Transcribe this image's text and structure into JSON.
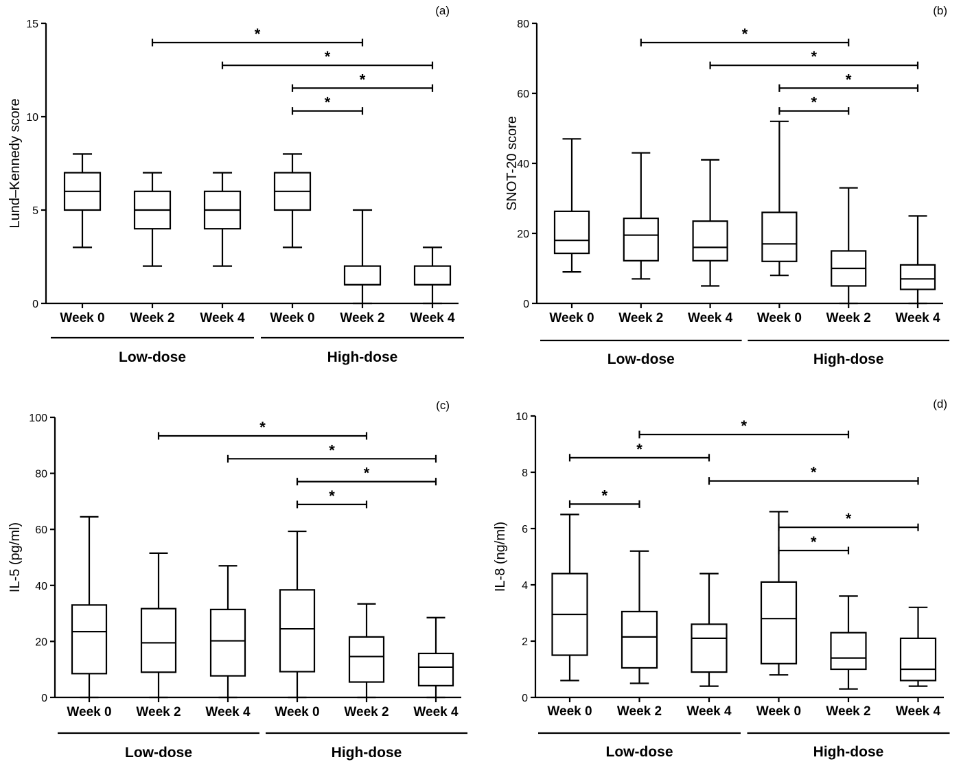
{
  "chart_data": [
    {
      "type": "box",
      "panel_label": "(a)",
      "ylabel": "Lund–Kennedy score",
      "ylim": [
        0,
        15
      ],
      "yticks": [
        0,
        5,
        10,
        15
      ],
      "categories": [
        "Week 0",
        "Week 2",
        "Week 4",
        "Week 0",
        "Week 2",
        "Week 4"
      ],
      "groups": [
        {
          "label": "Low-dose",
          "from": 0,
          "to": 2
        },
        {
          "label": "High-dose",
          "from": 3,
          "to": 5
        }
      ],
      "boxes": [
        {
          "min": 3,
          "q1": 5,
          "median": 6,
          "q3": 7,
          "max": 8
        },
        {
          "min": 2,
          "q1": 4,
          "median": 5,
          "q3": 6,
          "max": 7
        },
        {
          "min": 2,
          "q1": 4,
          "median": 5,
          "q3": 6,
          "max": 7
        },
        {
          "min": 3,
          "q1": 5,
          "median": 6,
          "q3": 7,
          "max": 8
        },
        {
          "min": 0,
          "q1": 1,
          "median": 1,
          "q3": 2,
          "max": 5
        },
        {
          "min": 0,
          "q1": 1,
          "median": 1,
          "q3": 2,
          "max": 3
        }
      ],
      "significance": [
        {
          "from": 1,
          "to": 4,
          "label": "*"
        },
        {
          "from": 2,
          "to": 5,
          "label": "*"
        },
        {
          "from": 3,
          "to": 5,
          "label": "*"
        },
        {
          "from": 3,
          "to": 4,
          "label": "*"
        }
      ]
    },
    {
      "type": "box",
      "panel_label": "(b)",
      "ylabel": "SNOT-20 score",
      "ylim": [
        0,
        80
      ],
      "yticks": [
        0,
        20,
        40,
        60,
        80
      ],
      "categories": [
        "Week 0",
        "Week 2",
        "Week 4",
        "Week 0",
        "Week 2",
        "Week 4"
      ],
      "groups": [
        {
          "label": "Low-dose",
          "from": 0,
          "to": 2
        },
        {
          "label": "High-dose",
          "from": 3,
          "to": 5
        }
      ],
      "boxes": [
        {
          "min": 9,
          "q1": 14.3,
          "median": 18,
          "q3": 26.3,
          "max": 47
        },
        {
          "min": 7,
          "q1": 12.2,
          "median": 19.5,
          "q3": 24.3,
          "max": 43
        },
        {
          "min": 5,
          "q1": 12.2,
          "median": 16,
          "q3": 23.5,
          "max": 41
        },
        {
          "min": 8,
          "q1": 12,
          "median": 17,
          "q3": 26,
          "max": 52
        },
        {
          "min": 0,
          "q1": 5,
          "median": 10,
          "q3": 15,
          "max": 33
        },
        {
          "min": 0,
          "q1": 4,
          "median": 7,
          "q3": 11,
          "max": 25
        }
      ],
      "significance": [
        {
          "from": 1,
          "to": 4,
          "label": "*"
        },
        {
          "from": 2,
          "to": 5,
          "label": "*"
        },
        {
          "from": 3,
          "to": 5,
          "label": "*"
        },
        {
          "from": 3,
          "to": 4,
          "label": "*"
        }
      ]
    },
    {
      "type": "box",
      "panel_label": "(c)",
      "ylabel": "IL-5 (pg/ml)",
      "ylim": [
        0,
        100
      ],
      "yticks": [
        0,
        20,
        40,
        60,
        80,
        100
      ],
      "categories": [
        "Week 0",
        "Week 2",
        "Week 4",
        "Week 0",
        "Week 2",
        "Week 4"
      ],
      "groups": [
        {
          "label": "Low-dose",
          "from": 0,
          "to": 2
        },
        {
          "label": "High-dose",
          "from": 3,
          "to": 5
        }
      ],
      "boxes": [
        {
          "min": 0,
          "q1": 8.5,
          "median": 23.5,
          "q3": 33,
          "max": 64.5
        },
        {
          "min": 0,
          "q1": 9,
          "median": 19.5,
          "q3": 31.7,
          "max": 51.5
        },
        {
          "min": 0,
          "q1": 7.7,
          "median": 20.2,
          "q3": 31.4,
          "max": 47
        },
        {
          "min": 0,
          "q1": 9.2,
          "median": 24.5,
          "q3": 38.4,
          "max": 59.3
        },
        {
          "min": 0,
          "q1": 5.5,
          "median": 14.6,
          "q3": 21.6,
          "max": 33.4
        },
        {
          "min": 0,
          "q1": 4.2,
          "median": 10.8,
          "q3": 15.7,
          "max": 28.5
        }
      ],
      "significance": [
        {
          "from": 1,
          "to": 4,
          "label": "*"
        },
        {
          "from": 2,
          "to": 5,
          "label": "*"
        },
        {
          "from": 3,
          "to": 5,
          "label": "*"
        },
        {
          "from": 3,
          "to": 4,
          "label": "*"
        }
      ]
    },
    {
      "type": "box",
      "panel_label": "(d)",
      "ylabel": "IL-8 (ng/ml)",
      "ylim": [
        0,
        10
      ],
      "yticks": [
        0,
        2,
        4,
        6,
        8,
        10
      ],
      "categories": [
        "Week 0",
        "Week 2",
        "Week 4",
        "Week 0",
        "Week 2",
        "Week 4"
      ],
      "groups": [
        {
          "label": "Low-dose",
          "from": 0,
          "to": 2
        },
        {
          "label": "High-dose",
          "from": 3,
          "to": 5
        }
      ],
      "boxes": [
        {
          "min": 0.6,
          "q1": 1.5,
          "median": 2.95,
          "q3": 4.4,
          "max": 6.5
        },
        {
          "min": 0.5,
          "q1": 1.05,
          "median": 2.15,
          "q3": 3.05,
          "max": 5.2
        },
        {
          "min": 0.4,
          "q1": 0.9,
          "median": 2.1,
          "q3": 2.6,
          "max": 4.4
        },
        {
          "min": 0.8,
          "q1": 1.2,
          "median": 2.8,
          "q3": 4.1,
          "max": 6.6
        },
        {
          "min": 0.3,
          "q1": 1.0,
          "median": 1.4,
          "q3": 2.3,
          "max": 3.6
        },
        {
          "min": 0.4,
          "q1": 0.6,
          "median": 1.0,
          "q3": 2.1,
          "max": 3.2
        }
      ],
      "significance": [
        {
          "from": 1,
          "to": 4,
          "label": "*"
        },
        {
          "from": 0,
          "to": 2,
          "label": "*"
        },
        {
          "from": 2,
          "to": 5,
          "label": "*"
        },
        {
          "from": 0,
          "to": 1,
          "label": "*"
        },
        {
          "from": 3,
          "to": 5,
          "label": "*"
        },
        {
          "from": 3,
          "to": 4,
          "label": "*"
        }
      ]
    }
  ]
}
